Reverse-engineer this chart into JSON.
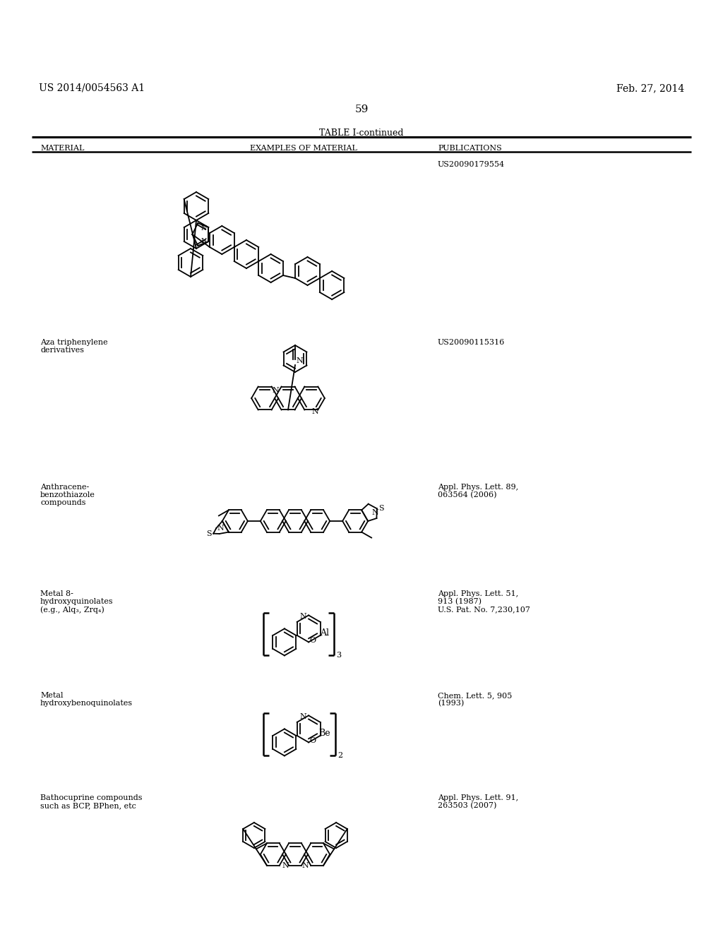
{
  "title_left": "US 2014/0054563 A1",
  "title_right": "Feb. 27, 2014",
  "page_number": "59",
  "table_title": "TABLE I-continued",
  "col1": "MATERIAL",
  "col2": "EXAMPLES OF MATERIAL",
  "col3": "PUBLICATIONS",
  "row1_pub": "US20090179554",
  "row2_mat": "Aza triphenylene\nderivatives",
  "row2_pub": "US20090115316",
  "row3_mat1": "Anthracene-",
  "row3_mat2": "benzothiazole",
  "row3_mat3": "compounds",
  "row3_pub1": "Appl. Phys. Lett. 89,",
  "row3_pub2": "063564 (2006)",
  "row4_mat1": "Metal 8-",
  "row4_mat2": "hydroxyquinolates",
  "row4_mat3": "(e.g., Alq₃, Zrq₄)",
  "row4_pub1": "Appl. Phys. Lett. 51,",
  "row4_pub2": "913 (1987)",
  "row4_pub3": "U.S. Pat. No. 7,230,107",
  "row5_mat1": "Metal",
  "row5_mat2": "hydroxybenoquinolates",
  "row5_pub1": "Chem. Lett. 5, 905",
  "row5_pub2": "(1993)",
  "row6_mat1": "Bathocuprine compounds",
  "row6_mat2": "such as BCP, BPhen, etc",
  "row6_pub1": "Appl. Phys. Lett. 91,",
  "row6_pub2": "263503 (2007)",
  "bg": "#ffffff"
}
